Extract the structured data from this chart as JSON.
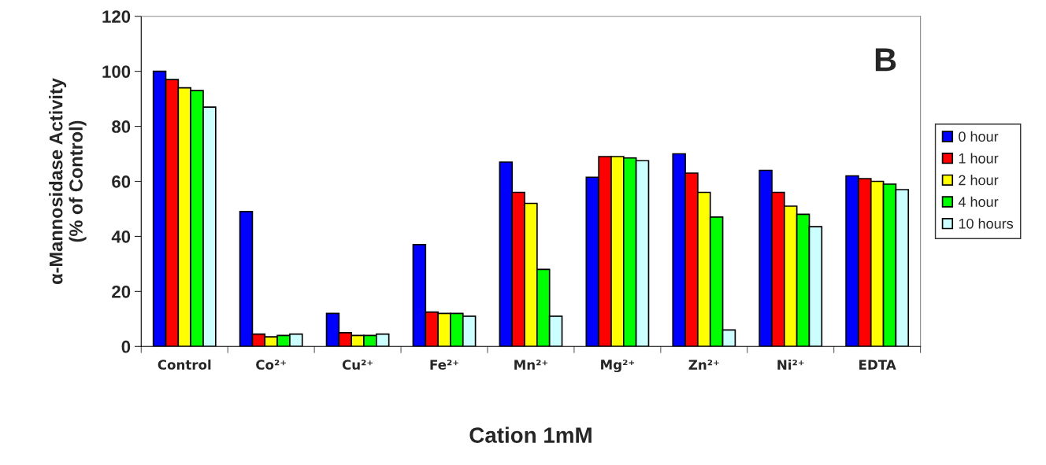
{
  "chart_data": {
    "type": "bar",
    "xlabel": "Cation 1mM",
    "ylabel": "α-Mannosidase Activity\n(% of Control)",
    "categories": [
      "Control",
      "Co²⁺",
      "Cu²⁺",
      "Fe²⁺",
      "Mn²⁺",
      "Mg²⁺",
      "Zn²⁺",
      "Ni²⁺",
      "EDTA"
    ],
    "series": [
      {
        "name": "0 hour",
        "color": "#0000ff",
        "values": [
          100,
          49,
          12,
          37,
          67,
          61.5,
          70,
          64,
          62
        ]
      },
      {
        "name": "1 hour",
        "color": "#ff0000",
        "values": [
          97,
          4.5,
          5,
          12.5,
          56,
          69,
          63,
          56,
          61
        ]
      },
      {
        "name": "2 hour",
        "color": "#ffff00",
        "values": [
          94,
          3.5,
          4,
          12,
          52,
          69,
          56,
          51,
          60
        ]
      },
      {
        "name": "4 hour",
        "color": "#00ff00",
        "values": [
          93,
          4,
          4,
          12,
          28,
          68.5,
          47,
          48,
          59
        ]
      },
      {
        "name": "10 hours",
        "color": "#ccffff",
        "values": [
          87,
          4.5,
          4.5,
          11,
          11,
          67.5,
          6,
          43.5,
          57
        ]
      }
    ],
    "ylim": [
      0,
      120
    ],
    "yticks": [
      0,
      20,
      40,
      60,
      80,
      100,
      120
    ],
    "grid": false,
    "legend": "right",
    "annotations": [
      "B"
    ]
  }
}
